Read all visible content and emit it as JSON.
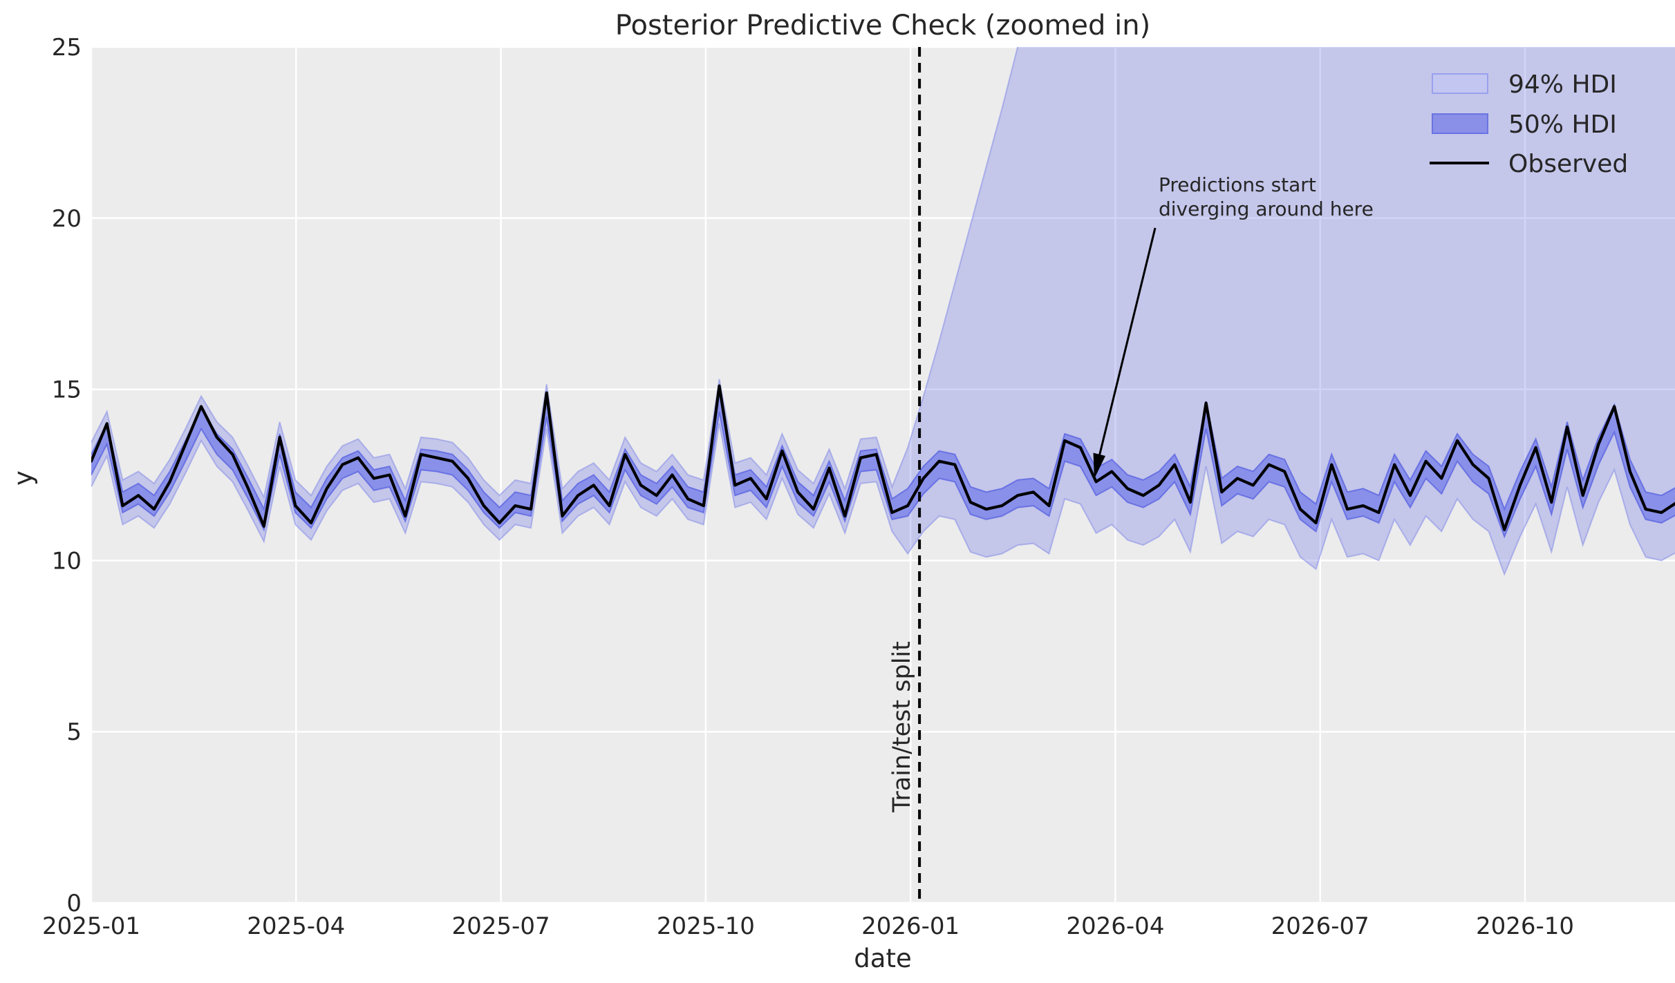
{
  "title": "Posterior Predictive Check (zoomed in)",
  "axes": {
    "xlabel": "date",
    "ylabel": "y",
    "yticks": [
      0,
      5,
      10,
      15,
      20,
      25
    ],
    "xticks": [
      {
        "label": "2025-01",
        "month": 0
      },
      {
        "label": "2025-04",
        "month": 3
      },
      {
        "label": "2025-07",
        "month": 6
      },
      {
        "label": "2025-10",
        "month": 9
      },
      {
        "label": "2026-01",
        "month": 12
      },
      {
        "label": "2026-04",
        "month": 15
      },
      {
        "label": "2026-07",
        "month": 18
      },
      {
        "label": "2026-10",
        "month": 21
      }
    ]
  },
  "legend": {
    "items": [
      {
        "label": "94% HDI",
        "swatch": "band94"
      },
      {
        "label": "50% HDI",
        "swatch": "band50"
      },
      {
        "label": "Observed",
        "swatch": "line"
      }
    ]
  },
  "annotations": {
    "split_label": "Train/test split",
    "note_line1": "Predictions start",
    "note_line2": "diverging around here"
  },
  "chart_data": {
    "type": "line",
    "x_start": "2025-01-05",
    "x_freq": "weekly",
    "split_date": "2026-01-04",
    "split_index": 52,
    "ylim": [
      0,
      25
    ],
    "colors": {
      "band": "#7b82e8",
      "band94_fill": "rgba(123,130,232,0.35)",
      "band50_fill": "rgba(123,130,232,0.8)",
      "band94_edge": "rgba(116,124,230,0.45)",
      "band50_edge": "rgba(95,104,226,0.85)",
      "observed": "#000000",
      "plot_bg": "#ececec",
      "grid": "#ffffff",
      "text": "#262626"
    },
    "observed": [
      12.9,
      14.0,
      11.6,
      11.9,
      11.5,
      12.3,
      13.4,
      14.5,
      13.6,
      13.1,
      12.1,
      11.0,
      13.6,
      11.6,
      11.1,
      12.1,
      12.8,
      13.0,
      12.4,
      12.5,
      11.3,
      13.1,
      13.0,
      12.9,
      12.4,
      11.6,
      11.1,
      11.6,
      11.5,
      14.9,
      11.3,
      11.9,
      12.2,
      11.6,
      13.1,
      12.2,
      11.9,
      12.5,
      11.8,
      11.6,
      15.1,
      12.2,
      12.4,
      11.8,
      13.2,
      12.0,
      11.5,
      12.7,
      11.3,
      13.0,
      13.1,
      11.4,
      11.6,
      12.4,
      12.9,
      12.8,
      11.7,
      11.5,
      11.6,
      11.9,
      12.0,
      11.6,
      13.5,
      13.3,
      12.3,
      12.6,
      12.1,
      11.9,
      12.2,
      12.8,
      11.7,
      14.6,
      12.0,
      12.4,
      12.2,
      12.8,
      12.6,
      11.5,
      11.1,
      12.8,
      11.5,
      11.6,
      11.4,
      12.8,
      11.9,
      12.9,
      12.4,
      13.5,
      12.8,
      12.4,
      10.9,
      12.2,
      13.3,
      11.7,
      13.9,
      11.9,
      13.4,
      14.5,
      12.6,
      11.5,
      11.4,
      11.7
    ],
    "hdi50_lower": [
      12.5,
      13.4,
      11.4,
      11.65,
      11.3,
      12.0,
      12.9,
      13.85,
      13.1,
      12.65,
      11.8,
      10.9,
      13.1,
      11.4,
      10.95,
      11.8,
      12.4,
      12.6,
      12.05,
      12.15,
      11.15,
      12.65,
      12.6,
      12.5,
      12.05,
      11.4,
      10.95,
      11.4,
      11.3,
      14.2,
      11.15,
      11.65,
      11.9,
      11.4,
      12.65,
      11.9,
      11.65,
      12.15,
      11.55,
      11.4,
      14.35,
      11.9,
      12.05,
      11.55,
      12.75,
      11.7,
      11.3,
      12.3,
      11.15,
      12.6,
      12.65,
      11.2,
      11.3,
      11.95,
      12.4,
      12.3,
      11.35,
      11.2,
      11.3,
      11.55,
      11.6,
      11.3,
      12.9,
      12.75,
      11.9,
      12.15,
      11.7,
      11.55,
      11.8,
      12.3,
      11.35,
      13.85,
      11.6,
      11.95,
      11.8,
      12.3,
      12.15,
      11.2,
      10.85,
      12.3,
      11.2,
      11.3,
      11.1,
      12.3,
      11.55,
      12.4,
      11.95,
      12.9,
      12.3,
      11.95,
      10.7,
      11.8,
      12.75,
      11.35,
      13.25,
      11.55,
      12.8,
      13.75,
      12.15,
      11.2,
      11.1,
      11.35
    ],
    "hdi50_upper": [
      13.1,
      14.0,
      12.0,
      12.25,
      11.9,
      12.6,
      13.5,
      14.45,
      13.7,
      13.25,
      12.4,
      11.5,
      13.7,
      12.0,
      11.55,
      12.4,
      13.0,
      13.2,
      12.65,
      12.75,
      11.75,
      13.25,
      13.2,
      13.1,
      12.65,
      12.0,
      11.55,
      12.0,
      11.9,
      14.8,
      11.75,
      12.25,
      12.5,
      12.0,
      13.25,
      12.5,
      12.25,
      12.75,
      12.15,
      12.0,
      14.95,
      12.5,
      12.65,
      12.15,
      13.35,
      12.3,
      11.9,
      12.9,
      11.75,
      13.2,
      13.25,
      11.8,
      12.1,
      12.75,
      13.2,
      13.1,
      12.15,
      12.0,
      12.1,
      12.35,
      12.4,
      12.1,
      13.7,
      13.55,
      12.7,
      12.95,
      12.5,
      12.35,
      12.6,
      13.1,
      12.15,
      14.65,
      12.4,
      12.75,
      12.6,
      13.1,
      12.95,
      12.0,
      11.65,
      13.1,
      12.0,
      12.1,
      11.9,
      13.1,
      12.35,
      13.2,
      12.75,
      13.7,
      13.1,
      12.75,
      11.5,
      12.6,
      13.55,
      12.15,
      14.05,
      12.35,
      13.6,
      14.55,
      12.95,
      12.0,
      11.9,
      12.15
    ],
    "hdi94_lower": [
      12.15,
      13.05,
      11.05,
      11.3,
      10.95,
      11.65,
      12.55,
      13.5,
      12.75,
      12.3,
      11.45,
      10.55,
      12.75,
      11.05,
      10.6,
      11.45,
      12.05,
      12.25,
      11.7,
      11.8,
      10.8,
      12.3,
      12.25,
      12.15,
      11.7,
      11.05,
      10.6,
      11.05,
      10.95,
      13.85,
      10.8,
      11.3,
      11.55,
      11.05,
      12.3,
      11.55,
      11.3,
      11.8,
      11.2,
      11.05,
      14.0,
      11.55,
      11.7,
      11.2,
      12.4,
      11.35,
      10.95,
      11.95,
      10.8,
      12.25,
      12.3,
      10.85,
      10.2,
      10.85,
      11.3,
      11.2,
      10.25,
      10.1,
      10.2,
      10.45,
      10.5,
      10.2,
      11.8,
      11.65,
      10.8,
      11.05,
      10.6,
      10.45,
      10.7,
      11.2,
      10.25,
      12.75,
      10.5,
      10.85,
      10.7,
      11.2,
      11.05,
      10.1,
      9.75,
      11.2,
      10.1,
      10.2,
      10.0,
      11.2,
      10.45,
      11.3,
      10.85,
      11.8,
      11.2,
      10.85,
      9.6,
      10.7,
      11.65,
      10.25,
      12.15,
      10.45,
      11.7,
      12.65,
      11.05,
      10.1,
      10.0,
      10.25
    ],
    "hdi94_upper": [
      13.45,
      14.35,
      12.35,
      12.6,
      12.25,
      12.95,
      13.85,
      14.8,
      14.05,
      13.6,
      12.75,
      11.85,
      14.05,
      12.35,
      11.9,
      12.75,
      13.35,
      13.55,
      13.0,
      13.1,
      12.1,
      13.6,
      13.55,
      13.45,
      13.0,
      12.35,
      11.9,
      12.35,
      12.25,
      15.15,
      12.1,
      12.6,
      12.85,
      12.35,
      13.6,
      12.85,
      12.6,
      13.1,
      12.5,
      12.35,
      15.3,
      12.85,
      13.0,
      12.5,
      13.7,
      12.65,
      12.25,
      13.25,
      12.1,
      13.55,
      13.6,
      12.15,
      13.3,
      14.8,
      16.4,
      18.1,
      19.8,
      21.5,
      23.2,
      25.0,
      26.8,
      28.0,
      28.0,
      28.0,
      28.0,
      28.0,
      28.0,
      28.0,
      28.0,
      28.0,
      28.0,
      28.0,
      28.0,
      28.0,
      28.0,
      28.0,
      28.0,
      28.0,
      28.0,
      28.0,
      28.0,
      28.0,
      28.0,
      28.0,
      28.0,
      28.0,
      28.0,
      28.0,
      28.0,
      28.0,
      28.0,
      28.0,
      28.0,
      28.0,
      28.0,
      28.0,
      28.0,
      28.0,
      28.0,
      28.0,
      28.0,
      28.0
    ]
  }
}
